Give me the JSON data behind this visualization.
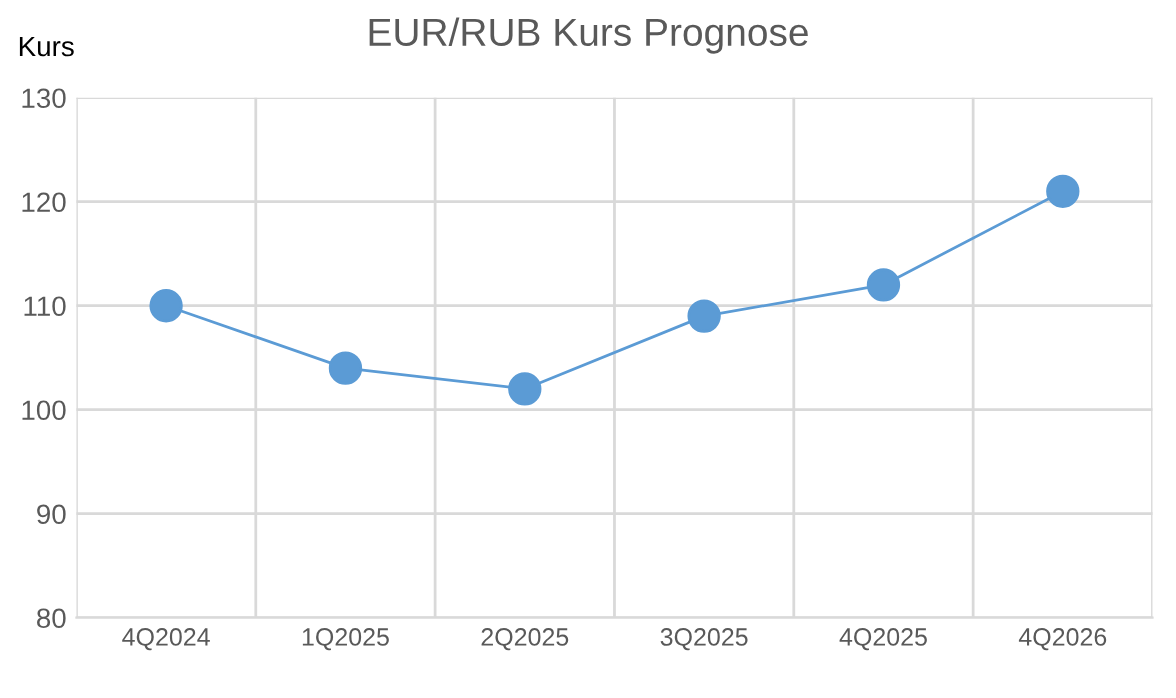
{
  "chart_data": {
    "type": "line",
    "title": "EUR/RUB Kurs Prognose",
    "ylabel": "Kurs",
    "categories": [
      "4Q2024",
      "1Q2025",
      "2Q2025",
      "3Q2025",
      "4Q2025",
      "4Q2026"
    ],
    "series": [
      {
        "color": "#5b9bd5",
        "values": [
          110,
          104,
          102,
          109,
          112,
          121
        ]
      }
    ],
    "ylim": [
      80,
      130
    ],
    "yticks": [
      80,
      90,
      100,
      110,
      120,
      130
    ],
    "grid": true,
    "marker": "circle",
    "line_style": "solid",
    "legend": false
  }
}
